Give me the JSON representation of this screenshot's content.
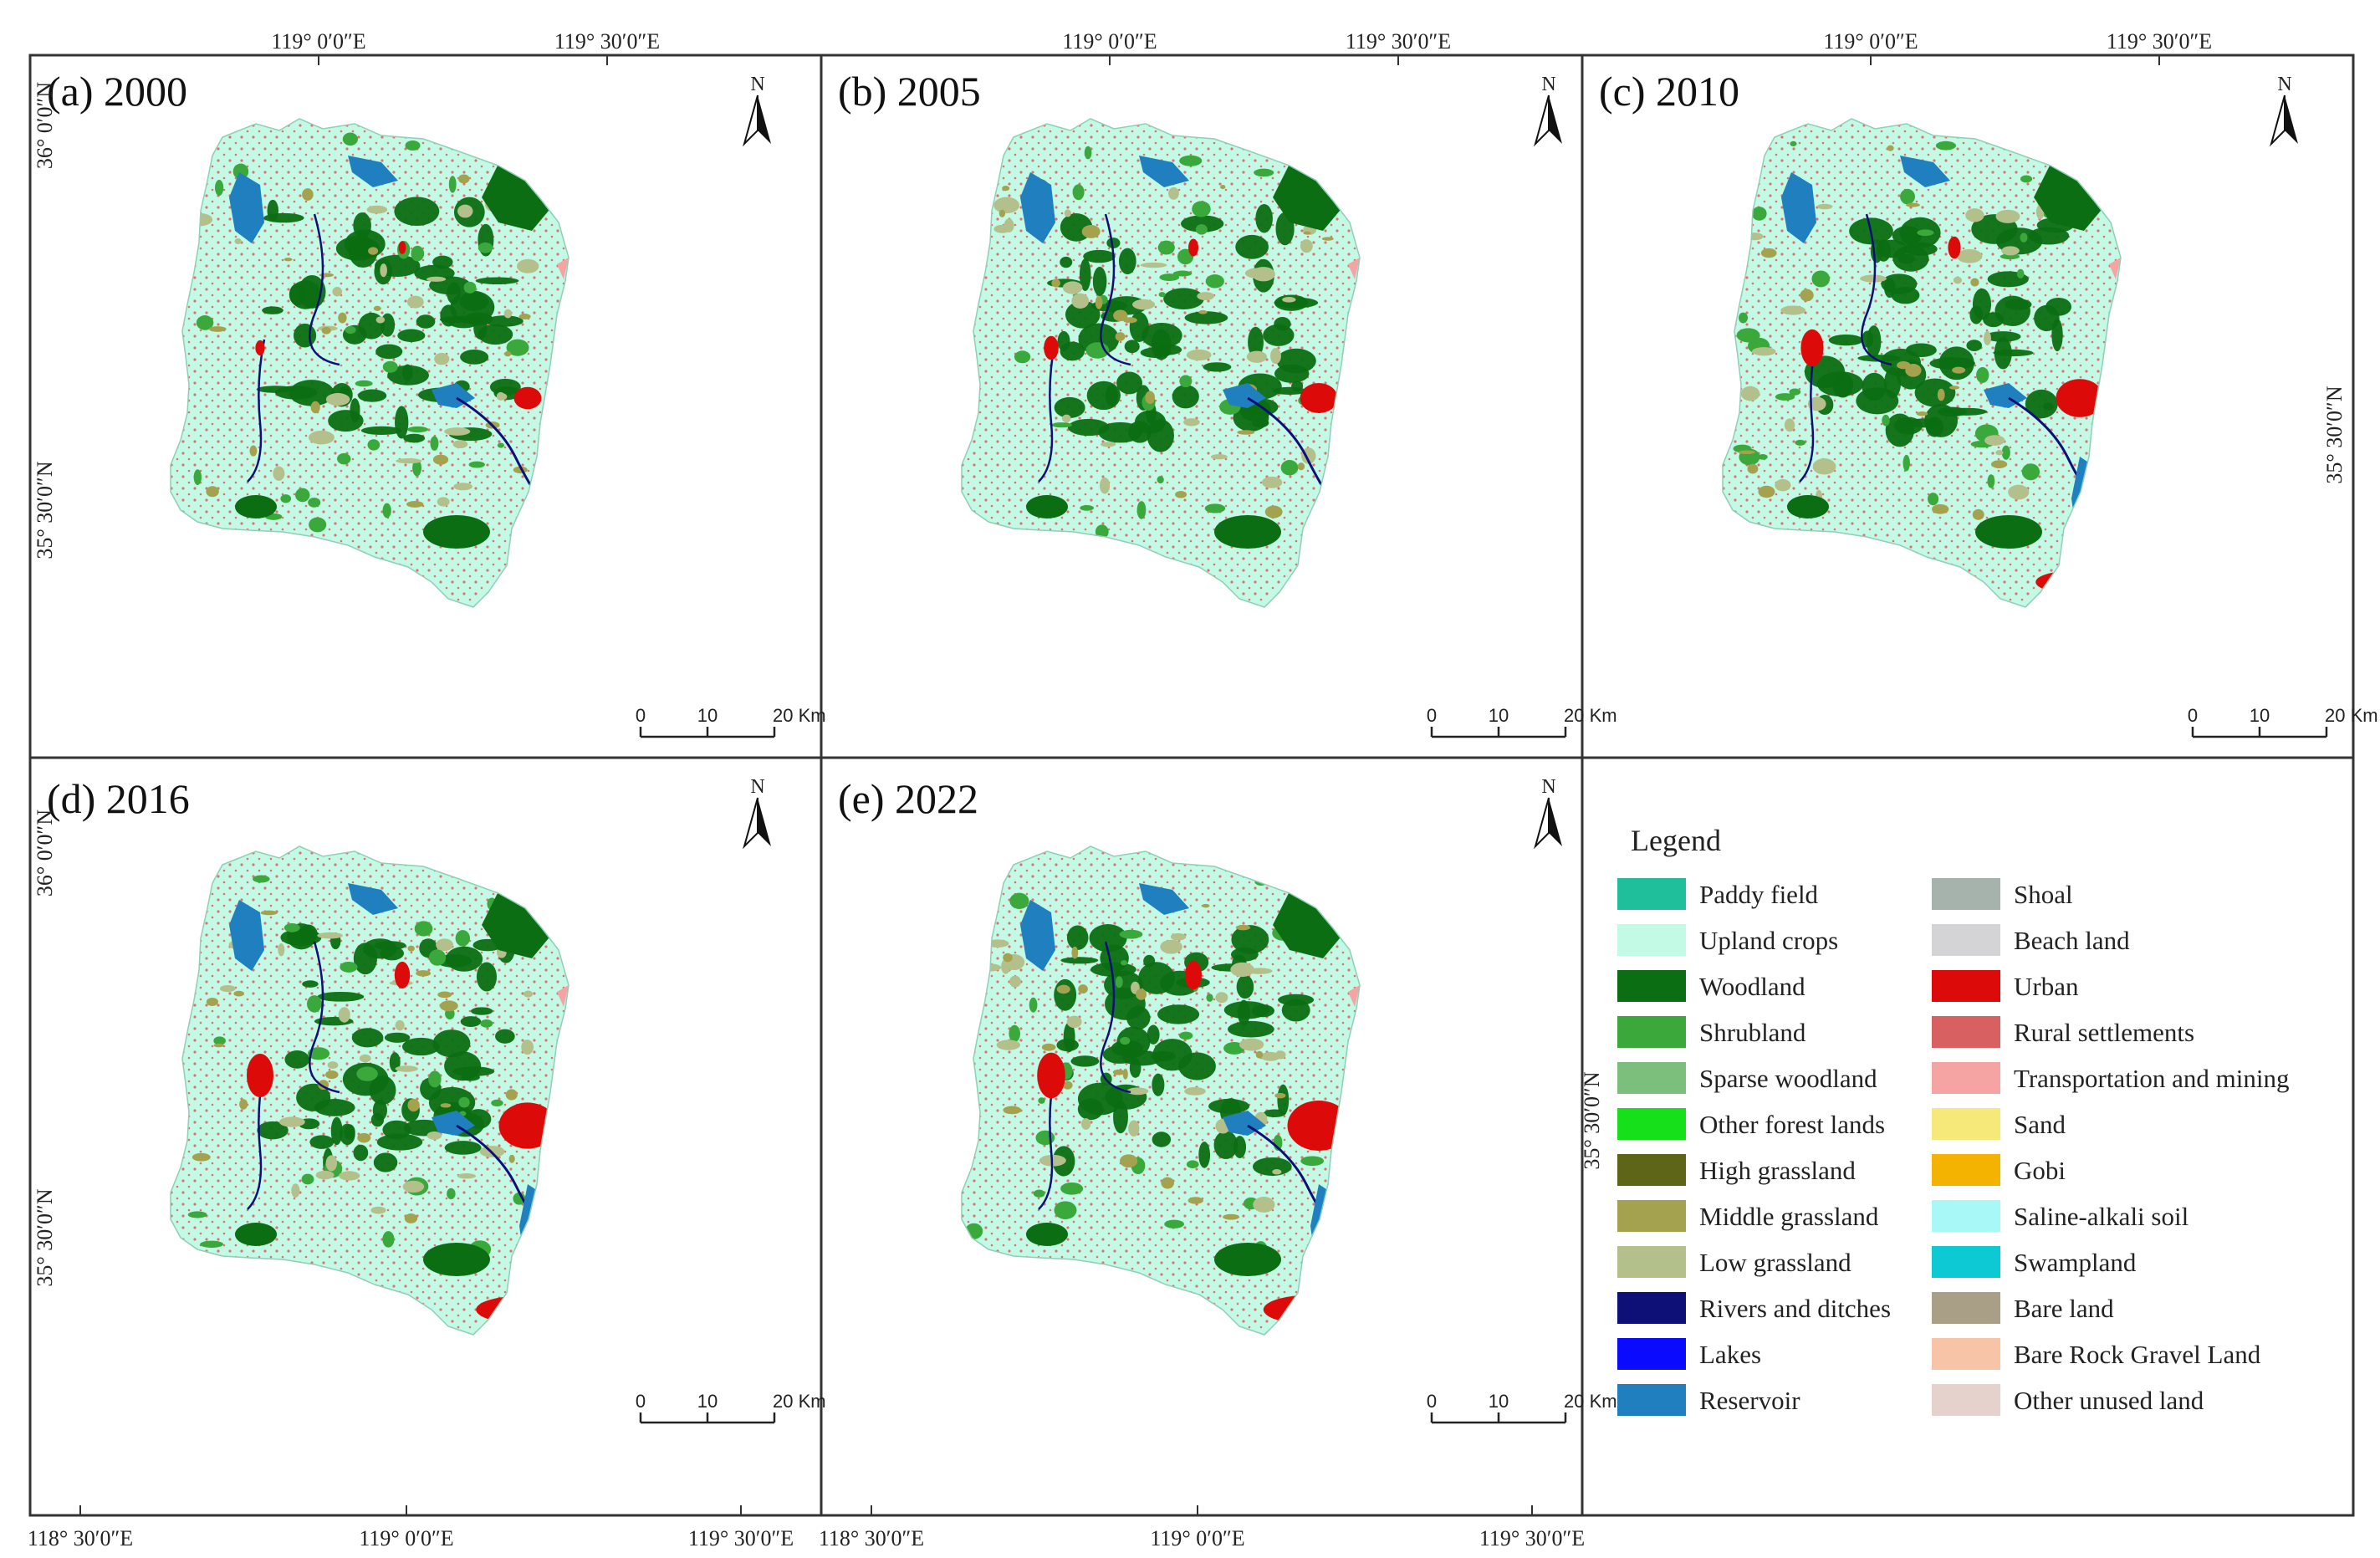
{
  "panels": [
    {
      "id": "a",
      "title": "(a) 2000",
      "urban_scale": 0.55,
      "coast_urban": false,
      "west_city": 0.35
    },
    {
      "id": "b",
      "title": "(b) 2005",
      "urban_scale": 0.75,
      "coast_urban": false,
      "west_city": 0.55
    },
    {
      "id": "c",
      "title": "(c) 2010",
      "urban_scale": 0.95,
      "coast_urban": true,
      "west_city": 0.85
    },
    {
      "id": "d",
      "title": "(d) 2016",
      "urban_scale": 1.15,
      "coast_urban": true,
      "west_city": 1.0
    },
    {
      "id": "e",
      "title": "(e) 2022",
      "urban_scale": 1.25,
      "coast_urban": true,
      "west_city": 1.05
    }
  ],
  "coords": {
    "top_lon": [
      "119° 0′0″E",
      "119° 30′0″E"
    ],
    "lat_36": "36° 0′0″N",
    "lat_3530": "35° 30′0″N",
    "bottom_left_lon": [
      "118° 30′0″E",
      "119° 0′0″E",
      "119° 30′0″E"
    ],
    "bottom_mid_lon": [
      "118° 30′0″E",
      "119° 0′0″E",
      "119° 30′0″E"
    ]
  },
  "north_label": "N",
  "scalebar": {
    "ticks": [
      "0",
      "10",
      "20 Km"
    ]
  },
  "legend": {
    "title": "Legend",
    "left": [
      {
        "label": "Paddy field",
        "color": "#1fbf9c"
      },
      {
        "label": "Upland crops",
        "color": "#c2fae6"
      },
      {
        "label": "Woodland",
        "color": "#0b6e12"
      },
      {
        "label": "Shrubland",
        "color": "#3aa83a"
      },
      {
        "label": "Sparse woodland",
        "color": "#7cbf7c"
      },
      {
        "label": "Other forest lands",
        "color": "#16e01a"
      },
      {
        "label": "High grassland",
        "color": "#5e6418"
      },
      {
        "label": "Middle grassland",
        "color": "#a4a24e"
      },
      {
        "label": "Low grassland",
        "color": "#b3c08c"
      },
      {
        "label": "Rivers and ditches",
        "color": "#0f0f78"
      },
      {
        "label": "Lakes",
        "color": "#0a0aff"
      },
      {
        "label": "Reservoir",
        "color": "#1f7fbf"
      }
    ],
    "right": [
      {
        "label": "Shoal",
        "color": "#a6b3ad"
      },
      {
        "label": "Beach land",
        "color": "#d4d4d6"
      },
      {
        "label": "Urban",
        "color": "#dd0a0a"
      },
      {
        "label": "Rural settlements",
        "color": "#d96060"
      },
      {
        "label": "Transportation and mining",
        "color": "#f5a3a3"
      },
      {
        "label": "Sand",
        "color": "#f7e87a"
      },
      {
        "label": "Gobi",
        "color": "#f3b300"
      },
      {
        "label": "Saline-alkali soil",
        "color": "#a8f8f8"
      },
      {
        "label": "Swampland",
        "color": "#0cc9d3"
      },
      {
        "label": "Bare land",
        "color": "#a89f86"
      },
      {
        "label": "Bare Rock Gravel Land",
        "color": "#f8c4a8"
      },
      {
        "label": "Other unused land",
        "color": "#e6d2cc"
      }
    ]
  }
}
